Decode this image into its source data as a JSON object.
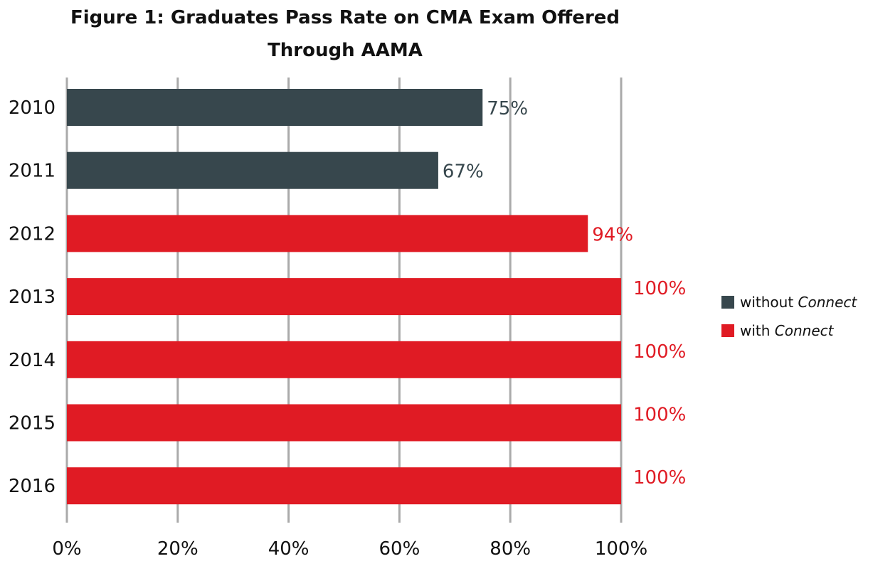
{
  "chart_data": {
    "type": "bar",
    "orientation": "horizontal",
    "title": "Figure 1: Graduates Pass Rate on CMA Exam Offered Through AAMA",
    "categories": [
      "2010",
      "2011",
      "2012",
      "2013",
      "2014",
      "2015",
      "2016"
    ],
    "values": [
      75,
      67,
      94,
      100,
      100,
      100,
      100
    ],
    "value_labels": [
      "75%",
      "67%",
      "94%",
      "100%",
      "100%",
      "100%",
      "100%"
    ],
    "groups": [
      "without",
      "without",
      "with",
      "with",
      "with",
      "with",
      "with"
    ],
    "colors": {
      "without": "#37474d",
      "with": "#e01b24"
    },
    "xlim": [
      0,
      100
    ],
    "xticks": [
      0,
      20,
      40,
      60,
      80,
      100
    ],
    "xtick_labels": [
      "0%",
      "20%",
      "40%",
      "60%",
      "80%",
      "100%"
    ],
    "grid": true,
    "legend_position": "right",
    "legend": [
      {
        "key": "without",
        "text": "without",
        "emphasis": "Connect"
      },
      {
        "key": "with",
        "text": "with",
        "emphasis": "Connect"
      }
    ]
  }
}
